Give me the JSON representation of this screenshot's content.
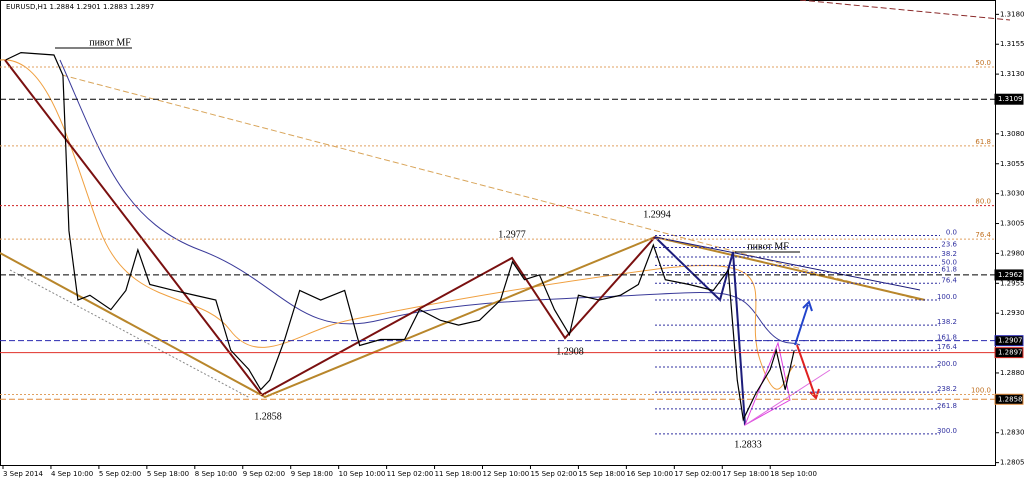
{
  "chart_data": {
    "type": "line",
    "title": "EURUSD,H1  1.2884 1.2901 1.2883 1.2897",
    "ylim": [
      1.2803,
      1.3192
    ],
    "xlim": [
      0,
      332
    ],
    "yticks": [
      {
        "value": 1.318,
        "label": "1.3180"
      },
      1.3155,
      {
        "value": 1.313,
        "label": "1.3130"
      },
      {
        "value": 1.308,
        "label": "1.3080"
      },
      1.3055,
      {
        "value": 1.303,
        "label": "1.3030"
      },
      1.3005,
      {
        "value": 1.298,
        "label": "1.2980"
      },
      1.2955,
      {
        "value": 1.293,
        "label": "1.2930"
      },
      {
        "value": 1.288,
        "label": "1.2880"
      },
      {
        "value": 1.283,
        "label": "1.2830"
      },
      1.2805
    ],
    "xticks": [
      {
        "value": 1,
        "label": "3 Sep 2014"
      },
      {
        "value": 17,
        "label": "4 Sep 10:00"
      },
      {
        "value": 33,
        "label": "5 Sep 02:00"
      },
      {
        "value": 49,
        "label": "5 Sep 18:00"
      },
      {
        "value": 65,
        "label": "8 Sep 10:00"
      },
      {
        "value": 81,
        "label": "9 Sep 02:00"
      },
      {
        "value": 97,
        "label": "9 Sep 18:00"
      },
      {
        "value": 113,
        "label": "10 Sep 10:00"
      },
      {
        "value": 129,
        "label": "11 Sep 02:00"
      },
      {
        "value": 145,
        "label": "11 Sep 18:00"
      },
      {
        "value": 161,
        "label": "12 Sep 10:00"
      },
      {
        "value": 177,
        "label": "15 Sep 02:00"
      },
      {
        "value": 193,
        "label": "15 Sep 18:00"
      },
      {
        "value": 209,
        "label": "16 Sep 10:00"
      },
      {
        "value": 225,
        "label": "17 Sep 02:00"
      },
      {
        "value": 241,
        "label": "17 Sep 18:00"
      },
      {
        "value": 257,
        "label": "18 Sep 10:00"
      }
    ],
    "series": [
      {
        "color": "#000000",
        "x": [
          2,
          7,
          18,
          21,
          22,
          23,
          26,
          30,
          37,
          42,
          46,
          50,
          58,
          65,
          72,
          77,
          83,
          87,
          90,
          95,
          100,
          107,
          115,
          120,
          127,
          135,
          140,
          147,
          153,
          160,
          167,
          171,
          175,
          180,
          185,
          190,
          193,
          200,
          207,
          213,
          218,
          222,
          230,
          238,
          243,
          246,
          248,
          252,
          257,
          259,
          262,
          265
        ],
        "values": [
          1.3142,
          1.3148,
          1.3146,
          1.3129,
          1.3066,
          1.2999,
          1.2941,
          1.2945,
          1.2933,
          1.2949,
          1.2983,
          1.2954,
          1.2949,
          1.2945,
          1.2941,
          1.2899,
          1.2883,
          1.2866,
          1.2874,
          1.2908,
          1.2949,
          1.2941,
          1.2949,
          1.2903,
          1.2908,
          1.2908,
          1.2933,
          1.2924,
          1.292,
          1.2924,
          1.2941,
          1.2973,
          1.2958,
          1.2962,
          1.2933,
          1.2912,
          1.2945,
          1.2941,
          1.2945,
          1.2954,
          1.2987,
          1.2958,
          1.2954,
          1.2949,
          1.2966,
          1.2874,
          1.2841,
          1.2862,
          1.2883,
          1.2899,
          1.2866,
          1.2899
        ]
      }
    ],
    "levels": [
      {
        "price": 1.3109,
        "color": "#000000"
      },
      {
        "price": 1.2962,
        "color": "#000000"
      },
      {
        "price": 1.2907,
        "color": "#2a2ab0"
      },
      {
        "price": 1.2897,
        "color": "#e0302a"
      },
      {
        "price": 1.2858,
        "color": "#e08a3a"
      }
    ],
    "fib_left": [
      {
        "label": "50.0",
        "price": 1.3136
      },
      {
        "label": "61.8",
        "price": 1.307
      },
      {
        "label": "80.0",
        "price": 1.302
      },
      {
        "label": "76.4",
        "price": 1.2992
      },
      {
        "label": "100.0",
        "price": 1.2862
      }
    ],
    "fib_right": [
      {
        "label": "0.0",
        "price": 1.2995
      },
      {
        "label": "23.6",
        "price": 1.2985
      },
      {
        "label": "38.2",
        "price": 1.2977
      },
      {
        "label": "50.0",
        "price": 1.297
      },
      {
        "label": "61.8",
        "price": 1.2964
      },
      {
        "label": "76.4",
        "price": 1.2955
      },
      {
        "label": "100.0",
        "price": 1.2941
      },
      {
        "label": "138.2",
        "price": 1.292
      },
      {
        "label": "161.8",
        "price": 1.2907
      },
      {
        "label": "176.4",
        "price": 1.2899
      },
      {
        "label": "200.0",
        "price": 1.2885
      },
      {
        "label": "238.2",
        "price": 1.2864
      },
      {
        "label": "261.8",
        "price": 1.285
      },
      {
        "label": "300.0",
        "price": 1.2829
      }
    ],
    "annotations": [
      1.2858,
      1.2977,
      1.2994,
      1.2908,
      1.2833
    ],
    "pivot_labels": [
      "пивот MF",
      "пивот MF"
    ]
  }
}
